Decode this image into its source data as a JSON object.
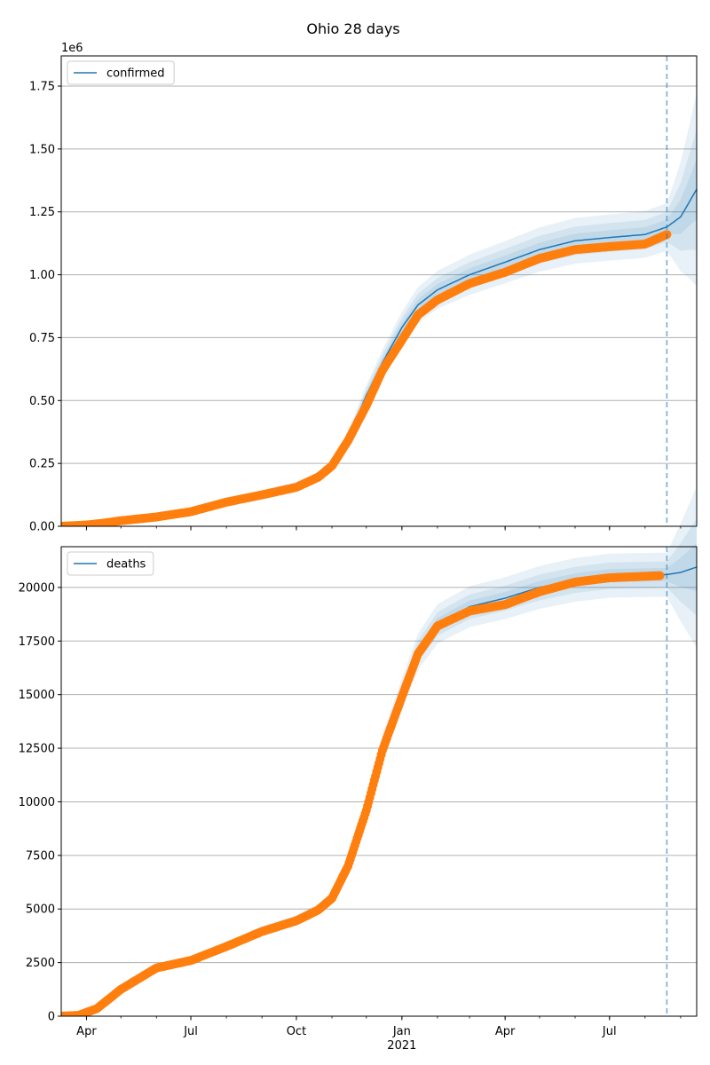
{
  "figure": {
    "title": "Ohio 28 days"
  },
  "chart_data": [
    {
      "type": "line",
      "series": [
        {
          "name": "confirmed",
          "role": "model fit and forecast",
          "color": "#1f77b4",
          "points": [
            [
              "2020-03-10",
              0
            ],
            [
              "2020-04-15",
              10000
            ],
            [
              "2020-06-01",
              40000
            ],
            [
              "2020-07-01",
              62000
            ],
            [
              "2020-08-01",
              100000
            ],
            [
              "2020-09-01",
              130000
            ],
            [
              "2020-10-01",
              165000
            ],
            [
              "2020-10-20",
              200000
            ],
            [
              "2020-11-01",
              245000
            ],
            [
              "2020-11-15",
              350000
            ],
            [
              "2020-12-01",
              520000
            ],
            [
              "2020-12-15",
              650000
            ],
            [
              "2021-01-01",
              790000
            ],
            [
              "2021-01-15",
              880000
            ],
            [
              "2021-02-01",
              940000
            ],
            [
              "2021-03-01",
              1000000
            ],
            [
              "2021-04-01",
              1050000
            ],
            [
              "2021-05-01",
              1100000
            ],
            [
              "2021-06-01",
              1135000
            ],
            [
              "2021-07-01",
              1148000
            ],
            [
              "2021-08-01",
              1160000
            ],
            [
              "2021-08-20",
              1190000
            ],
            [
              "2021-09-01",
              1230000
            ],
            [
              "2021-09-15",
              1340000
            ]
          ]
        },
        {
          "name": "",
          "role": "observed",
          "color": "#ff7f0e",
          "points": [
            [
              "2020-03-10",
              0
            ],
            [
              "2020-04-01",
              5000
            ],
            [
              "2020-04-15",
              12000
            ],
            [
              "2020-05-01",
              22000
            ],
            [
              "2020-06-01",
              37000
            ],
            [
              "2020-07-01",
              58000
            ],
            [
              "2020-08-01",
              96000
            ],
            [
              "2020-09-01",
              125000
            ],
            [
              "2020-10-01",
              155000
            ],
            [
              "2020-10-20",
              195000
            ],
            [
              "2020-11-01",
              240000
            ],
            [
              "2020-11-15",
              340000
            ],
            [
              "2020-12-01",
              480000
            ],
            [
              "2020-12-15",
              620000
            ],
            [
              "2021-01-01",
              740000
            ],
            [
              "2021-01-15",
              840000
            ],
            [
              "2021-02-01",
              900000
            ],
            [
              "2021-03-01",
              965000
            ],
            [
              "2021-04-01",
              1010000
            ],
            [
              "2021-05-01",
              1065000
            ],
            [
              "2021-06-01",
              1100000
            ],
            [
              "2021-07-01",
              1112000
            ],
            [
              "2021-08-01",
              1122000
            ],
            [
              "2021-08-20",
              1160000
            ]
          ]
        }
      ],
      "bands": {
        "color": "#1f77b4",
        "relative_widths": [
          0.025,
          0.05,
          0.08
        ]
      },
      "xlim": [
        "2020-03-10",
        "2021-09-15"
      ],
      "ylim": [
        0,
        1870000
      ],
      "y_ticks": [
        0,
        250000,
        500000,
        750000,
        1000000,
        1250000,
        1500000,
        1750000
      ],
      "y_tick_labels": [
        "0.00",
        "0.25",
        "0.50",
        "0.75",
        "1.00",
        "1.25",
        "1.50",
        "1.75"
      ],
      "y_offset_label": "1e6",
      "forecast_start": "2021-08-20",
      "grid": "y",
      "legend": "upper left"
    },
    {
      "type": "line",
      "series": [
        {
          "name": "deaths",
          "role": "model fit and forecast",
          "color": "#1f77b4",
          "points": [
            [
              "2020-03-10",
              0
            ],
            [
              "2020-03-25",
              30
            ],
            [
              "2020-04-10",
              400
            ],
            [
              "2020-05-01",
              1300
            ],
            [
              "2020-06-01",
              2300
            ],
            [
              "2020-07-01",
              2650
            ],
            [
              "2020-08-01",
              3300
            ],
            [
              "2020-09-01",
              4000
            ],
            [
              "2020-10-01",
              4500
            ],
            [
              "2020-10-20",
              5000
            ],
            [
              "2020-11-01",
              5500
            ],
            [
              "2020-11-15",
              7000
            ],
            [
              "2020-12-01",
              9500
            ],
            [
              "2020-12-15",
              12500
            ],
            [
              "2021-01-01",
              15000
            ],
            [
              "2021-01-15",
              17000
            ],
            [
              "2021-02-01",
              18300
            ],
            [
              "2021-03-01",
              19100
            ],
            [
              "2021-04-01",
              19500
            ],
            [
              "2021-05-01",
              20000
            ],
            [
              "2021-06-01",
              20350
            ],
            [
              "2021-07-01",
              20550
            ],
            [
              "2021-08-20",
              20600
            ],
            [
              "2021-09-01",
              20700
            ],
            [
              "2021-09-15",
              20950
            ]
          ]
        },
        {
          "name": "",
          "role": "observed",
          "color": "#ff7f0e",
          "points": [
            [
              "2020-03-10",
              0
            ],
            [
              "2020-03-25",
              40
            ],
            [
              "2020-04-10",
              350
            ],
            [
              "2020-05-01",
              1250
            ],
            [
              "2020-06-01",
              2250
            ],
            [
              "2020-07-01",
              2600
            ],
            [
              "2020-08-01",
              3250
            ],
            [
              "2020-09-01",
              3950
            ],
            [
              "2020-10-01",
              4450
            ],
            [
              "2020-10-20",
              4950
            ],
            [
              "2020-11-01",
              5500
            ],
            [
              "2020-11-15",
              7000
            ],
            [
              "2020-12-01",
              9600
            ],
            [
              "2020-12-15",
              12400
            ],
            [
              "2021-01-01",
              14900
            ],
            [
              "2021-01-15",
              16900
            ],
            [
              "2021-02-01",
              18200
            ],
            [
              "2021-03-01",
              18900
            ],
            [
              "2021-04-01",
              19200
            ],
            [
              "2021-05-01",
              19800
            ],
            [
              "2021-06-01",
              20250
            ],
            [
              "2021-07-01",
              20450
            ],
            [
              "2021-08-14",
              20550
            ]
          ]
        }
      ],
      "bands": {
        "color": "#1f77b4",
        "relative_widths": [
          0.015,
          0.03,
          0.05
        ]
      },
      "xlim": [
        "2020-03-10",
        "2021-09-15"
      ],
      "ylim": [
        0,
        21900
      ],
      "y_ticks": [
        0,
        2500,
        5000,
        7500,
        10000,
        12500,
        15000,
        17500,
        20000
      ],
      "y_tick_labels": [
        "0",
        "2500",
        "5000",
        "7500",
        "10000",
        "12500",
        "15000",
        "17500",
        "20000"
      ],
      "forecast_start": "2021-08-20",
      "grid": "y",
      "legend": "upper left"
    }
  ],
  "x_axis": {
    "tick_labels": [
      {
        "date": "2020-04-01",
        "label": "Apr"
      },
      {
        "date": "2020-07-01",
        "label": "Jul"
      },
      {
        "date": "2020-10-01",
        "label": "Oct"
      },
      {
        "date": "2021-01-01",
        "label": "Jan",
        "sublabel": "2021"
      },
      {
        "date": "2021-04-01",
        "label": "Apr"
      },
      {
        "date": "2021-07-01",
        "label": "Jul"
      }
    ],
    "minor_ticks_monthly": true
  }
}
